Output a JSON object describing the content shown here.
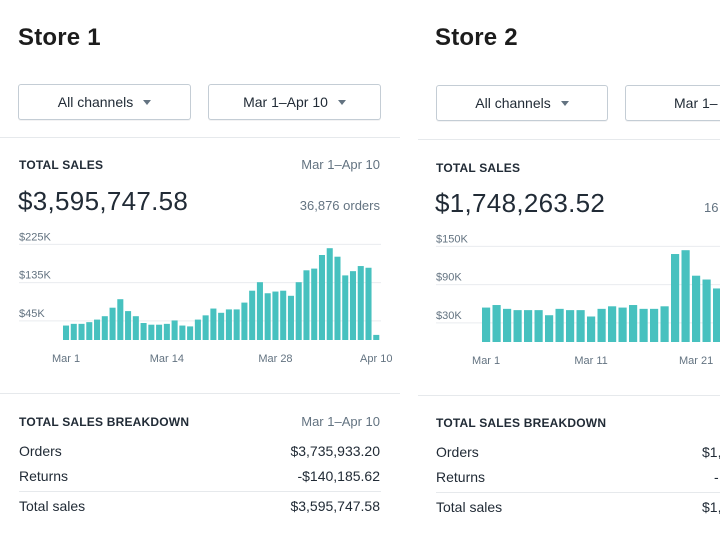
{
  "colors": {
    "bar": "#47c1bf",
    "text": "#212b36",
    "muted": "#637381",
    "divider": "#e6e9ec"
  },
  "stores": [
    {
      "title": "Store 1",
      "channel_filter": "All channels",
      "date_filter": "Mar 1–Apr 10",
      "total_sales": {
        "label": "TOTAL SALES",
        "range": "Mar 1–Apr 10",
        "amount": "$3,595,747.58",
        "orders": "36,876 orders"
      },
      "breakdown": {
        "label": "TOTAL SALES BREAKDOWN",
        "range": "Mar 1–Apr 10",
        "rows": [
          {
            "label": "Orders",
            "value": "$3,735,933.20"
          },
          {
            "label": "Returns",
            "value": "-$140,185.62"
          },
          {
            "label": "Total sales",
            "value": "$3,595,747.58"
          }
        ]
      }
    },
    {
      "title": "Store 2",
      "channel_filter": "All channels",
      "date_filter": "Mar 1–",
      "total_sales": {
        "label": "TOTAL SALES",
        "amount": "$1,748,263.52",
        "orders": "16"
      },
      "breakdown": {
        "label": "TOTAL SALES BREAKDOWN",
        "rows": [
          {
            "label": "Orders",
            "value": "$1,"
          },
          {
            "label": "Returns",
            "value": "-"
          },
          {
            "label": "Total sales",
            "value": "$1,"
          }
        ]
      }
    }
  ],
  "chart_data": [
    {
      "type": "bar",
      "y_ticks": [
        "$225K",
        "$135K",
        "$45K"
      ],
      "y_tick_values": [
        225000,
        135000,
        45000
      ],
      "ylim": [
        0,
        240000
      ],
      "x_tick_labels": [
        "Mar 1",
        "Mar 14",
        "Mar 28",
        "Apr 10"
      ],
      "x_tick_indices": [
        0,
        13,
        27,
        40
      ],
      "grid": true,
      "values": [
        34000,
        38000,
        38000,
        42000,
        48000,
        56000,
        76000,
        96000,
        68000,
        56000,
        40000,
        36000,
        36000,
        38000,
        46000,
        34000,
        32000,
        48000,
        58000,
        74000,
        64000,
        72000,
        72000,
        88000,
        116000,
        136000,
        110000,
        114000,
        116000,
        104000,
        136000,
        164000,
        168000,
        200000,
        216000,
        196000,
        152000,
        162000,
        174000,
        170000,
        12000
      ]
    },
    {
      "type": "bar",
      "y_ticks": [
        "$150K",
        "$90K",
        "$30K"
      ],
      "y_tick_values": [
        150000,
        90000,
        30000
      ],
      "ylim": [
        0,
        160000
      ],
      "x_tick_labels": [
        "Mar 1",
        "Mar 11",
        "Mar 21"
      ],
      "x_tick_indices": [
        0,
        10,
        20
      ],
      "grid": true,
      "values": [
        54000,
        58000,
        52000,
        50000,
        50000,
        50000,
        42000,
        52000,
        50000,
        50000,
        40000,
        52000,
        56000,
        54000,
        58000,
        52000,
        52000,
        56000,
        138000,
        144000,
        104000,
        98000,
        84000
      ]
    }
  ]
}
